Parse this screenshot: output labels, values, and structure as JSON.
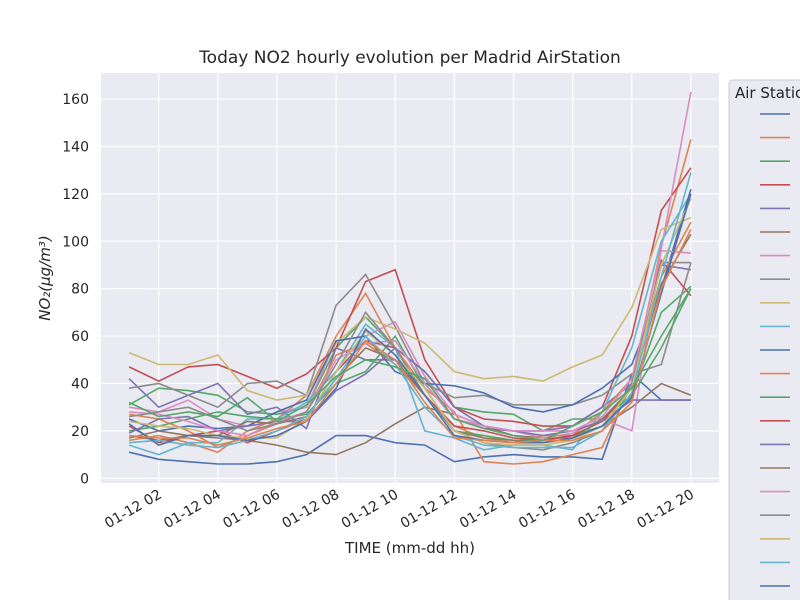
{
  "chart_data": {
    "type": "line",
    "title": "Today NO2 hourly evolution per Madrid AirStation",
    "x_label": "TIME (mm-dd hh)",
    "y_label": "NO₂(μg/m³)",
    "legend_title": "Air Station",
    "legend": "outside-right",
    "grid": true,
    "x": [
      1,
      2,
      3,
      4,
      5,
      6,
      7,
      8,
      9,
      10,
      11,
      12,
      13,
      14,
      15,
      16,
      17,
      18,
      19,
      20
    ],
    "xlim": [
      0.05,
      20.95
    ],
    "xticks": [
      {
        "value": 2,
        "label": "01-12 02"
      },
      {
        "value": 4,
        "label": "01-12 04"
      },
      {
        "value": 6,
        "label": "01-12 06"
      },
      {
        "value": 8,
        "label": "01-12 08"
      },
      {
        "value": 10,
        "label": "01-12 10"
      },
      {
        "value": 12,
        "label": "01-12 12"
      },
      {
        "value": 14,
        "label": "01-12 14"
      },
      {
        "value": 16,
        "label": "01-12 16"
      },
      {
        "value": 18,
        "label": "01-12 18"
      },
      {
        "value": 20,
        "label": "01-12 20"
      }
    ],
    "ylim": [
      -2,
      171
    ],
    "yticks": [
      0,
      20,
      40,
      60,
      80,
      100,
      120,
      140,
      160
    ],
    "series": [
      {
        "color": "#4c72b0",
        "values": [
          11,
          8,
          7,
          6,
          6,
          7,
          10,
          18,
          18,
          15,
          14,
          7,
          9,
          10,
          9,
          9,
          8,
          44,
          33,
          33
        ]
      },
      {
        "color": "#dd8452",
        "values": [
          16,
          18,
          15,
          11,
          20,
          25,
          35,
          60,
          78,
          55,
          38,
          28,
          7,
          6,
          7,
          10,
          13,
          40,
          98,
          143
        ]
      },
      {
        "color": "#55a868",
        "values": [
          31,
          38,
          37,
          35,
          28,
          27,
          30,
          55,
          68,
          55,
          45,
          30,
          28,
          27,
          20,
          25,
          25,
          35,
          70,
          81
        ]
      },
      {
        "color": "#c44e52",
        "values": [
          47,
          41,
          47,
          48,
          43,
          38,
          44,
          55,
          83,
          88,
          50,
          30,
          25,
          24,
          22,
          22,
          30,
          60,
          113,
          131
        ]
      },
      {
        "color": "#8172b3",
        "values": [
          42,
          30,
          35,
          40,
          27,
          30,
          21,
          55,
          50,
          50,
          40,
          25,
          21,
          20,
          20,
          22,
          30,
          40,
          90,
          88
        ]
      },
      {
        "color": "#937860",
        "values": [
          18,
          16,
          18,
          17,
          16,
          14,
          11,
          10,
          15,
          23,
          30,
          27,
          22,
          18,
          17,
          17,
          22,
          30,
          40,
          35
        ]
      },
      {
        "color": "#da8bc3",
        "values": [
          30,
          28,
          33,
          25,
          22,
          28,
          30,
          58,
          60,
          66,
          43,
          27,
          22,
          20,
          17,
          19,
          25,
          20,
          97,
          163
        ]
      },
      {
        "color": "#8c8c8c",
        "values": [
          38,
          40,
          35,
          30,
          40,
          41,
          35,
          73,
          86,
          64,
          40,
          34,
          35,
          31,
          31,
          31,
          35,
          44,
          48,
          91
        ]
      },
      {
        "color": "#ccb974",
        "values": [
          53,
          48,
          48,
          52,
          37,
          33,
          35,
          57,
          68,
          63,
          57,
          45,
          42,
          43,
          41,
          47,
          52,
          72,
          105,
          110
        ]
      },
      {
        "color": "#64b5cd",
        "values": [
          14,
          10,
          15,
          15,
          25,
          25,
          32,
          45,
          65,
          55,
          20,
          17,
          12,
          14,
          14,
          12,
          28,
          55,
          100,
          120
        ]
      },
      {
        "color": "#4c72b0",
        "values": [
          25,
          20,
          22,
          21,
          22,
          28,
          33,
          58,
          60,
          45,
          40,
          39,
          36,
          30,
          28,
          31,
          38,
          48,
          80,
          122
        ]
      },
      {
        "color": "#dd8452",
        "values": [
          27,
          25,
          20,
          13,
          18,
          23,
          28,
          52,
          57,
          48,
          35,
          22,
          17,
          15,
          18,
          18,
          28,
          42,
          85,
          108
        ]
      },
      {
        "color": "#55a868",
        "values": [
          20,
          22,
          25,
          28,
          26,
          25,
          27,
          40,
          45,
          60,
          38,
          20,
          18,
          16,
          16,
          18,
          22,
          35,
          55,
          80
        ]
      },
      {
        "color": "#c44e52",
        "values": [
          22,
          15,
          18,
          20,
          15,
          20,
          25,
          45,
          58,
          55,
          35,
          22,
          20,
          17,
          16,
          18,
          24,
          38,
          92,
          77
        ]
      },
      {
        "color": "#8172b3",
        "values": [
          19,
          25,
          26,
          20,
          22,
          24,
          24,
          37,
          44,
          55,
          45,
          30,
          22,
          20,
          18,
          20,
          24,
          33,
          33,
          33
        ]
      },
      {
        "color": "#937860",
        "values": [
          17,
          20,
          18,
          18,
          24,
          23,
          26,
          42,
          55,
          50,
          35,
          20,
          17,
          16,
          15,
          17,
          25,
          38,
          82,
          103
        ]
      },
      {
        "color": "#da8bc3",
        "values": [
          28,
          27,
          24,
          20,
          18,
          24,
          28,
          50,
          57,
          58,
          40,
          25,
          22,
          20,
          20,
          20,
          26,
          42,
          96,
          95
        ]
      },
      {
        "color": "#8c8c8c",
        "values": [
          26,
          28,
          30,
          25,
          20,
          23,
          28,
          48,
          70,
          55,
          35,
          20,
          15,
          13,
          12,
          15,
          20,
          40,
          91,
          91
        ]
      },
      {
        "color": "#ccb974",
        "values": [
          24,
          22,
          21,
          18,
          17,
          17,
          25,
          45,
          62,
          52,
          38,
          20,
          15,
          14,
          14,
          16,
          22,
          38,
          90,
          118
        ]
      },
      {
        "color": "#64b5cd",
        "values": [
          15,
          16,
          14,
          13,
          16,
          20,
          26,
          42,
          60,
          48,
          30,
          18,
          14,
          13,
          13,
          13,
          20,
          36,
          85,
          129
        ]
      },
      {
        "color": "#4c72b0",
        "values": [
          23,
          14,
          18,
          18,
          16,
          18,
          24,
          38,
          63,
          52,
          35,
          18,
          16,
          15,
          15,
          17,
          22,
          34,
          78,
          120
        ]
      },
      {
        "color": "#dd8452",
        "values": [
          18,
          17,
          17,
          14,
          17,
          21,
          24,
          40,
          58,
          50,
          32,
          17,
          16,
          15,
          16,
          16,
          20,
          32,
          80,
          105
        ]
      },
      {
        "color": "#55a868",
        "values": [
          32,
          26,
          28,
          26,
          34,
          24,
          31,
          43,
          50,
          47,
          42,
          25,
          21,
          18,
          16,
          22,
          28,
          38,
          60,
          80
        ]
      }
    ]
  }
}
